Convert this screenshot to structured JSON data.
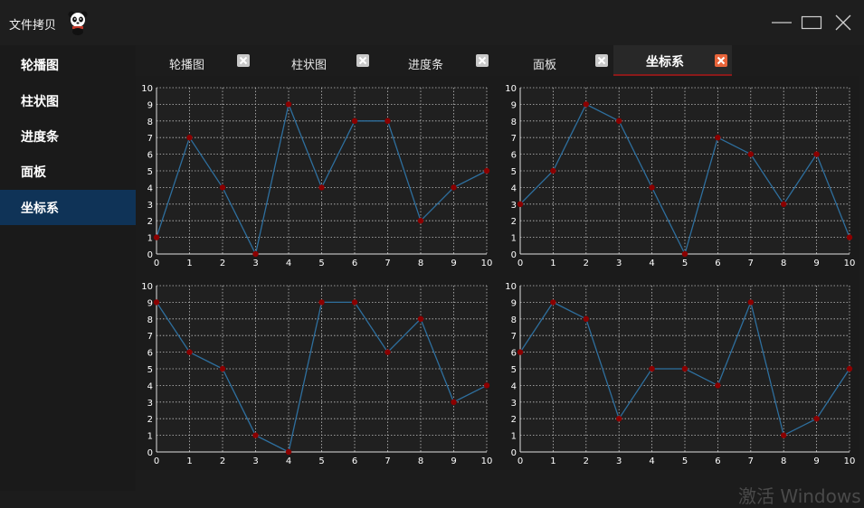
{
  "window": {
    "title": "文件拷贝",
    "logo_icon": "panda-icon",
    "controls": [
      "minimize-icon",
      "maximize-icon",
      "close-icon"
    ]
  },
  "sidebar": {
    "items": [
      {
        "label": "轮播图"
      },
      {
        "label": "柱状图"
      },
      {
        "label": "进度条"
      },
      {
        "label": "面板"
      },
      {
        "label": "坐标系"
      }
    ],
    "active_index": 4
  },
  "tabs": {
    "items": [
      {
        "label": "轮播图"
      },
      {
        "label": "柱状图"
      },
      {
        "label": "进度条"
      },
      {
        "label": "面板"
      },
      {
        "label": "坐标系"
      }
    ],
    "active_index": 4,
    "close_icon": "close-icon"
  },
  "colors": {
    "sidebar_active": "#0f3357",
    "tab_active_close": "#e8643a",
    "line": "#2e6f9e",
    "point": "#8b0000",
    "grid": "#bdbdbd"
  },
  "chart_data": [
    {
      "type": "line",
      "x": [
        0,
        1,
        2,
        3,
        4,
        5,
        6,
        7,
        8,
        9,
        10
      ],
      "values": [
        1,
        7,
        4,
        0,
        9,
        4,
        8,
        8,
        2,
        4,
        5
      ],
      "xlim": [
        0,
        10
      ],
      "ylim": [
        0,
        10
      ],
      "xticks": [
        0,
        1,
        2,
        3,
        4,
        5,
        6,
        7,
        8,
        9,
        10
      ],
      "yticks": [
        0,
        1,
        2,
        3,
        4,
        5,
        6,
        7,
        8,
        9,
        10
      ],
      "grid": true
    },
    {
      "type": "line",
      "x": [
        0,
        1,
        2,
        3,
        4,
        5,
        6,
        7,
        8,
        9,
        10
      ],
      "values": [
        3,
        5,
        9,
        8,
        4,
        0,
        7,
        6,
        3,
        6,
        1
      ],
      "xlim": [
        0,
        10
      ],
      "ylim": [
        0,
        10
      ],
      "xticks": [
        0,
        1,
        2,
        3,
        4,
        5,
        6,
        7,
        8,
        9,
        10
      ],
      "yticks": [
        0,
        1,
        2,
        3,
        4,
        5,
        6,
        7,
        8,
        9,
        10
      ],
      "grid": true
    },
    {
      "type": "line",
      "x": [
        0,
        1,
        2,
        3,
        4,
        5,
        6,
        7,
        8,
        9,
        10
      ],
      "values": [
        9,
        6,
        5,
        1,
        0,
        9,
        9,
        6,
        8,
        3,
        4
      ],
      "xlim": [
        0,
        10
      ],
      "ylim": [
        0,
        10
      ],
      "xticks": [
        0,
        1,
        2,
        3,
        4,
        5,
        6,
        7,
        8,
        9,
        10
      ],
      "yticks": [
        0,
        1,
        2,
        3,
        4,
        5,
        6,
        7,
        8,
        9,
        10
      ],
      "grid": true
    },
    {
      "type": "line",
      "x": [
        0,
        1,
        2,
        3,
        4,
        5,
        6,
        7,
        8,
        9,
        10
      ],
      "values": [
        6,
        9,
        8,
        2,
        5,
        5,
        4,
        9,
        1,
        2,
        5
      ],
      "xlim": [
        0,
        10
      ],
      "ylim": [
        0,
        10
      ],
      "xticks": [
        0,
        1,
        2,
        3,
        4,
        5,
        6,
        7,
        8,
        9,
        10
      ],
      "yticks": [
        0,
        1,
        2,
        3,
        4,
        5,
        6,
        7,
        8,
        9,
        10
      ],
      "grid": true
    }
  ],
  "watermark": "激活 Windows"
}
